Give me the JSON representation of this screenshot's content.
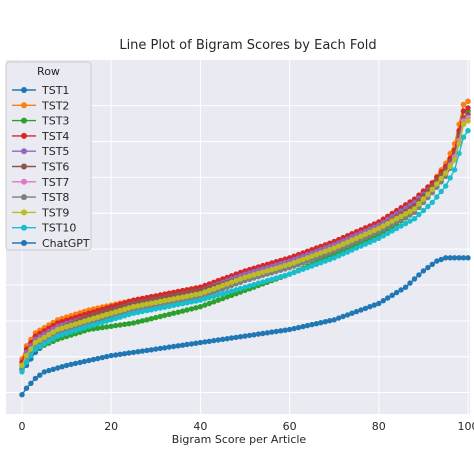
{
  "chart_data": {
    "type": "line",
    "title": "Line Plot of Bigram Scores by Each Fold",
    "xlabel": "Bigram Score per Article",
    "ylabel": "",
    "xlim": [
      -1,
      100
    ],
    "ylim": [
      0,
      1
    ],
    "x_ticks": [
      0,
      20,
      40,
      60,
      80,
      100
    ],
    "x_tick_labels": [
      "0",
      "20",
      "40",
      "60",
      "80",
      "100"
    ],
    "y_ticks_unlabeled": [
      0.0167,
      0.1267,
      0.2367,
      0.3467,
      0.4567,
      0.5667,
      0.6767,
      0.7867,
      0.8967
    ],
    "grid": true,
    "background": "#eaeaf2",
    "legend": {
      "title": "Row",
      "placement": "top-left"
    },
    "note": "y-axis tick labels are cut off in the original image; y values are on a relative 0-1 scale",
    "series": [
      {
        "name": "TST1",
        "color": "#1f77b4",
        "anchors": [
          [
            0,
            0.086
          ],
          [
            1,
            0.1
          ],
          [
            3,
            0.14
          ],
          [
            8,
            0.2
          ],
          [
            15,
            0.23
          ],
          [
            25,
            0.27
          ],
          [
            40,
            0.32
          ],
          [
            50,
            0.37
          ],
          [
            60,
            0.4
          ],
          [
            70,
            0.45
          ],
          [
            80,
            0.51
          ],
          [
            88,
            0.58
          ],
          [
            92,
            0.64
          ],
          [
            95,
            0.7
          ],
          [
            97,
            0.76
          ],
          [
            98,
            0.82
          ],
          [
            99,
            0.9
          ]
        ],
        "end": [
          100,
          0.91
        ]
      },
      {
        "name": "TST2",
        "color": "#ff7f0e",
        "anchors": [
          [
            0,
            0.12
          ],
          [
            1,
            0.16
          ],
          [
            3,
            0.2
          ],
          [
            8,
            0.24
          ],
          [
            15,
            0.27
          ],
          [
            25,
            0.3
          ],
          [
            40,
            0.34
          ],
          [
            50,
            0.38
          ],
          [
            60,
            0.42
          ],
          [
            70,
            0.47
          ],
          [
            80,
            0.53
          ],
          [
            88,
            0.6
          ],
          [
            92,
            0.66
          ],
          [
            95,
            0.72
          ],
          [
            97,
            0.78
          ],
          [
            98,
            0.84
          ],
          [
            99,
            0.9
          ]
        ],
        "end": [
          100,
          0.91
        ]
      },
      {
        "name": "TST3",
        "color": "#2ca02c",
        "anchors": [
          [
            0,
            0.09
          ],
          [
            1,
            0.12
          ],
          [
            3,
            0.15
          ],
          [
            8,
            0.18
          ],
          [
            15,
            0.21
          ],
          [
            25,
            0.23
          ],
          [
            40,
            0.28
          ],
          [
            50,
            0.33
          ],
          [
            60,
            0.38
          ],
          [
            70,
            0.44
          ],
          [
            80,
            0.5
          ],
          [
            88,
            0.57
          ],
          [
            92,
            0.63
          ],
          [
            95,
            0.69
          ],
          [
            97,
            0.75
          ],
          [
            98,
            0.81
          ],
          [
            99,
            0.88
          ]
        ],
        "end": [
          100,
          0.88
        ]
      },
      {
        "name": "TST4",
        "color": "#d62728",
        "anchors": [
          [
            0,
            0.11
          ],
          [
            1,
            0.15
          ],
          [
            3,
            0.19
          ],
          [
            8,
            0.23
          ],
          [
            15,
            0.26
          ],
          [
            25,
            0.3
          ],
          [
            40,
            0.34
          ],
          [
            50,
            0.39
          ],
          [
            60,
            0.43
          ],
          [
            70,
            0.48
          ],
          [
            80,
            0.54
          ],
          [
            88,
            0.61
          ],
          [
            92,
            0.66
          ],
          [
            95,
            0.71
          ],
          [
            97,
            0.76
          ],
          [
            98,
            0.82
          ],
          [
            99,
            0.88
          ]
        ],
        "end": [
          100,
          0.89
        ]
      },
      {
        "name": "TST5",
        "color": "#9467bd",
        "anchors": [
          [
            0,
            0.1
          ],
          [
            1,
            0.14
          ],
          [
            3,
            0.18
          ],
          [
            8,
            0.22
          ],
          [
            15,
            0.25
          ],
          [
            25,
            0.29
          ],
          [
            40,
            0.33
          ],
          [
            50,
            0.38
          ],
          [
            60,
            0.42
          ],
          [
            70,
            0.47
          ],
          [
            80,
            0.53
          ],
          [
            88,
            0.6
          ],
          [
            92,
            0.65
          ],
          [
            95,
            0.7
          ],
          [
            97,
            0.75
          ],
          [
            98,
            0.8
          ],
          [
            99,
            0.86
          ]
        ],
        "end": [
          100,
          0.87
        ]
      },
      {
        "name": "TST6",
        "color": "#8c564b",
        "anchors": [
          [
            0,
            0.1
          ],
          [
            1,
            0.13
          ],
          [
            3,
            0.17
          ],
          [
            8,
            0.21
          ],
          [
            15,
            0.25
          ],
          [
            25,
            0.29
          ],
          [
            40,
            0.33
          ],
          [
            50,
            0.37
          ],
          [
            60,
            0.41
          ],
          [
            70,
            0.46
          ],
          [
            80,
            0.52
          ],
          [
            88,
            0.59
          ],
          [
            92,
            0.65
          ],
          [
            95,
            0.7
          ],
          [
            97,
            0.75
          ],
          [
            98,
            0.8
          ],
          [
            99,
            0.86
          ]
        ],
        "end": [
          100,
          0.87
        ]
      },
      {
        "name": "TST7",
        "color": "#e377c2",
        "anchors": [
          [
            0,
            0.09
          ],
          [
            1,
            0.13
          ],
          [
            3,
            0.17
          ],
          [
            8,
            0.21
          ],
          [
            15,
            0.24
          ],
          [
            25,
            0.28
          ],
          [
            40,
            0.32
          ],
          [
            50,
            0.37
          ],
          [
            60,
            0.41
          ],
          [
            70,
            0.46
          ],
          [
            80,
            0.52
          ],
          [
            88,
            0.58
          ],
          [
            92,
            0.64
          ],
          [
            95,
            0.69
          ],
          [
            97,
            0.74
          ],
          [
            98,
            0.79
          ],
          [
            99,
            0.85
          ]
        ],
        "end": [
          100,
          0.86
        ]
      },
      {
        "name": "TST8",
        "color": "#7f7f7f",
        "anchors": [
          [
            0,
            0.09
          ],
          [
            1,
            0.12
          ],
          [
            3,
            0.16
          ],
          [
            8,
            0.2
          ],
          [
            15,
            0.23
          ],
          [
            25,
            0.27
          ],
          [
            40,
            0.31
          ],
          [
            50,
            0.36
          ],
          [
            60,
            0.4
          ],
          [
            70,
            0.45
          ],
          [
            80,
            0.51
          ],
          [
            88,
            0.57
          ],
          [
            92,
            0.63
          ],
          [
            95,
            0.68
          ],
          [
            97,
            0.73
          ],
          [
            98,
            0.78
          ],
          [
            99,
            0.84
          ]
        ],
        "end": [
          100,
          0.85
        ]
      },
      {
        "name": "TST9",
        "color": "#bcbd22",
        "anchors": [
          [
            0,
            0.1
          ],
          [
            1,
            0.13
          ],
          [
            3,
            0.17
          ],
          [
            8,
            0.21
          ],
          [
            15,
            0.24
          ],
          [
            25,
            0.28
          ],
          [
            40,
            0.32
          ],
          [
            50,
            0.37
          ],
          [
            60,
            0.41
          ],
          [
            70,
            0.46
          ],
          [
            80,
            0.52
          ],
          [
            88,
            0.58
          ],
          [
            92,
            0.64
          ],
          [
            95,
            0.69
          ],
          [
            97,
            0.73
          ],
          [
            98,
            0.78
          ],
          [
            99,
            0.84
          ]
        ],
        "end": [
          100,
          0.85
        ]
      },
      {
        "name": "TST10",
        "color": "#17becf",
        "anchors": [
          [
            0,
            0.08
          ],
          [
            1,
            0.11
          ],
          [
            3,
            0.15
          ],
          [
            8,
            0.19
          ],
          [
            15,
            0.22
          ],
          [
            25,
            0.26
          ],
          [
            40,
            0.3
          ],
          [
            50,
            0.34
          ],
          [
            60,
            0.38
          ],
          [
            70,
            0.43
          ],
          [
            80,
            0.49
          ],
          [
            88,
            0.55
          ],
          [
            92,
            0.6
          ],
          [
            95,
            0.65
          ],
          [
            97,
            0.7
          ],
          [
            98,
            0.75
          ],
          [
            99,
            0.8
          ]
        ],
        "end": [
          100,
          0.82
        ]
      },
      {
        "name": "ChatGPT",
        "color": "#1f77b4",
        "anchors": [
          [
            0,
            0.01
          ],
          [
            1,
            0.03
          ],
          [
            3,
            0.06
          ],
          [
            5,
            0.08
          ],
          [
            10,
            0.1
          ],
          [
            20,
            0.13
          ],
          [
            35,
            0.16
          ],
          [
            50,
            0.19
          ],
          [
            60,
            0.21
          ],
          [
            70,
            0.24
          ],
          [
            80,
            0.29
          ],
          [
            86,
            0.34
          ],
          [
            90,
            0.39
          ],
          [
            93,
            0.42
          ],
          [
            95,
            0.43
          ],
          [
            98,
            0.43
          ],
          [
            99,
            0.43
          ]
        ],
        "end": [
          100,
          0.43
        ]
      }
    ]
  }
}
